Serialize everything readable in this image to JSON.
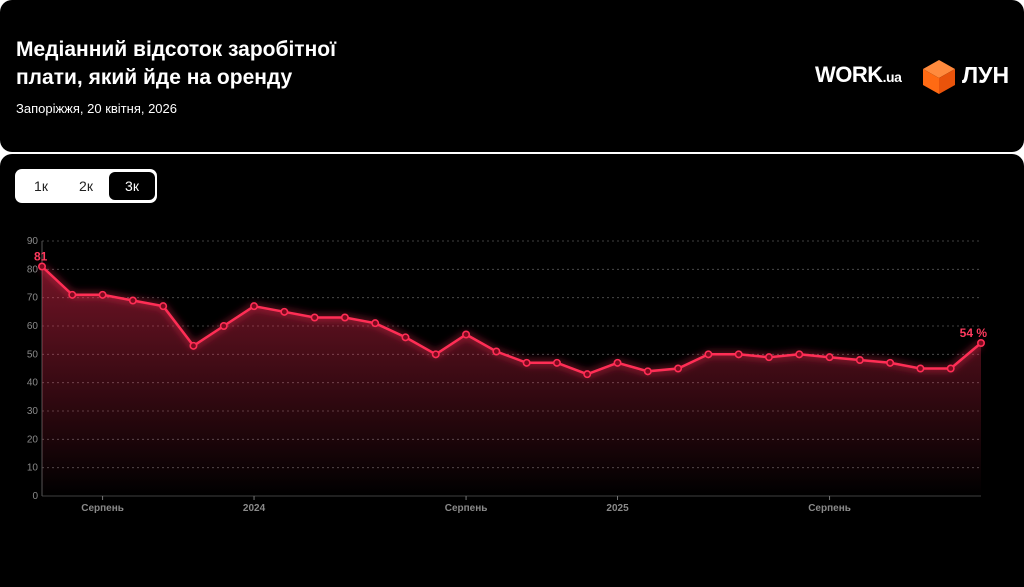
{
  "header": {
    "title": "Медіанний відсоток заробітної плати, який йде на оренду",
    "subtitle": "Запоріжжя, 20 квітня, 2026",
    "brand_work": "WORK",
    "brand_work_suffix": ".ua",
    "brand_lun": "ЛУН"
  },
  "tabs": [
    {
      "label": "1к",
      "active": false
    },
    {
      "label": "2к",
      "active": false
    },
    {
      "label": "3к",
      "active": true
    }
  ],
  "colors": {
    "line": "#ff2d55",
    "background": "#000000",
    "brand_cube": "#ff6a13"
  },
  "chart_data": {
    "type": "area",
    "ylim": [
      0,
      90
    ],
    "yticks": [
      0,
      10,
      20,
      30,
      40,
      50,
      60,
      70,
      80,
      90
    ],
    "grid": true,
    "x_tick_labels": [
      {
        "label": "Серпень",
        "index": 2
      },
      {
        "label": "2024",
        "index": 7
      },
      {
        "label": "Серпень",
        "index": 14
      },
      {
        "label": "2025",
        "index": 19
      },
      {
        "label": "Серпень",
        "index": 26
      }
    ],
    "values": [
      81,
      71,
      71,
      69,
      67,
      53,
      60,
      67,
      65,
      63,
      63,
      61,
      56,
      50,
      57,
      51,
      47,
      47,
      43,
      47,
      44,
      45,
      50,
      50,
      49,
      50,
      49,
      48,
      47,
      45,
      45,
      54
    ],
    "first_label": "81",
    "last_label": "54 %"
  }
}
